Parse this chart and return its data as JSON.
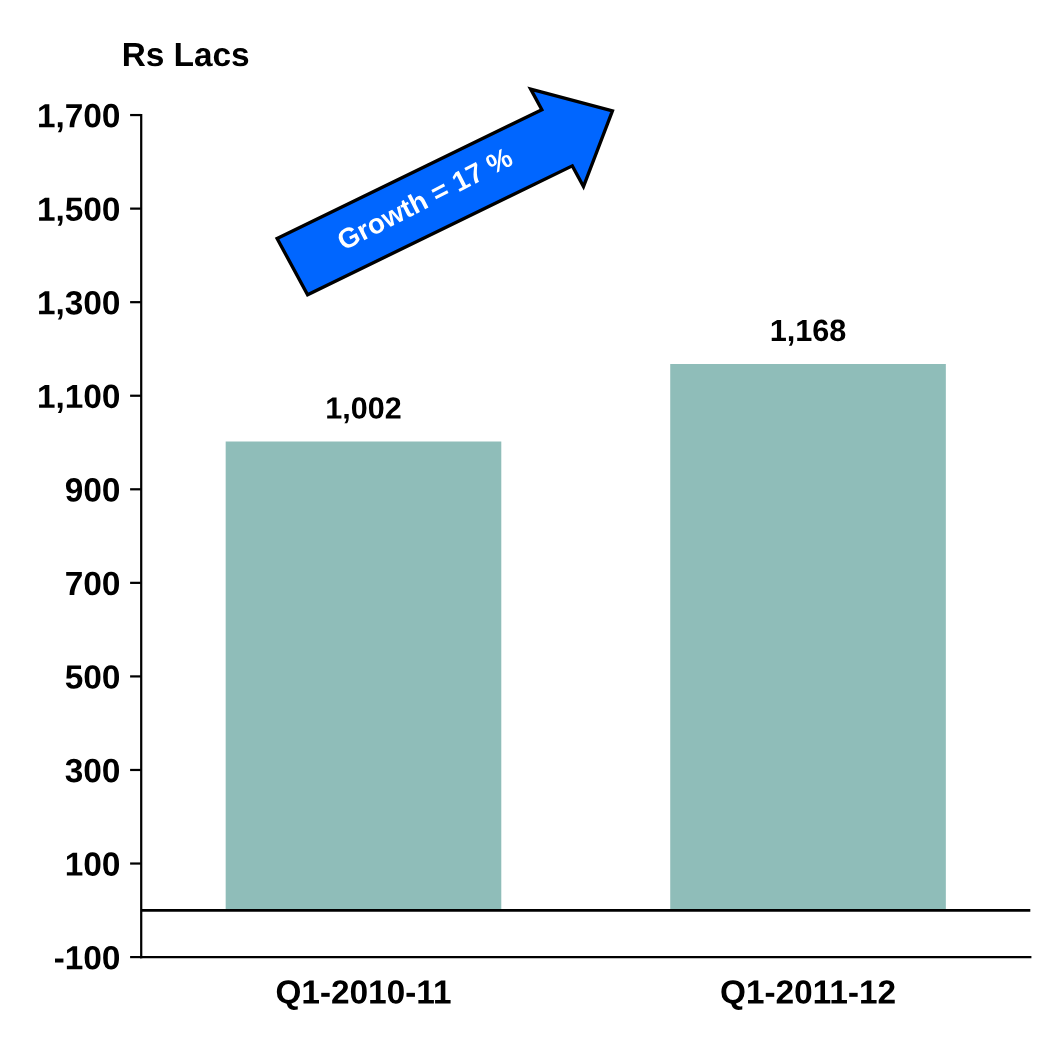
{
  "chart_data": {
    "type": "bar",
    "ylabel": "Rs Lacs",
    "categories": [
      "Q1-2010-11",
      "Q1-2011-12"
    ],
    "values": [
      1002,
      1168
    ],
    "value_labels": [
      "1,002",
      "1,168"
    ],
    "color": "#8fbdb9",
    "ylim": [
      -100,
      1700
    ],
    "yticks": [
      -100,
      100,
      300,
      500,
      700,
      900,
      {
        "value": 1100,
        "label": "1,100"
      },
      {
        "value": 1300,
        "label": "1,300"
      },
      {
        "value": 1500,
        "label": "1,500"
      },
      {
        "value": 1700,
        "label": "1,700"
      }
    ],
    "grid": false,
    "annotations": [
      "Growth = 17 %"
    ]
  }
}
